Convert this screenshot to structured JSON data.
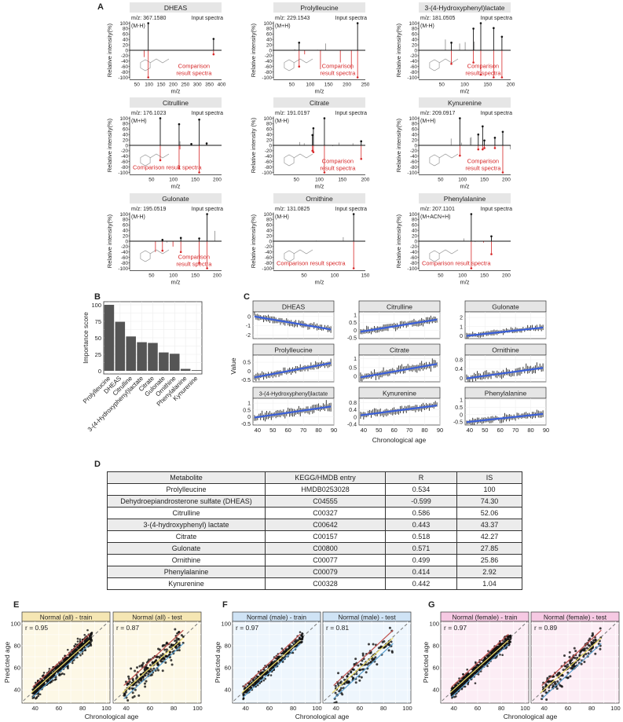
{
  "panel_labels": {
    "A": "A",
    "B": "B",
    "C": "C",
    "D": "D",
    "E": "E",
    "F": "F",
    "G": "G"
  },
  "spectra": [
    {
      "name": "DHEAS",
      "mz": "m/z: 367.1580",
      "input_label": "Input spectra",
      "adduct": "(M-H)",
      "ylabel": "Relative intensity(%)",
      "xlabel": "m/z",
      "xlim": [
        20,
        400
      ],
      "xticks": [
        50,
        100,
        150,
        200,
        250,
        300,
        350,
        400
      ],
      "yticks": [
        100,
        80,
        60,
        40,
        20,
        0,
        -20,
        -40,
        -60,
        -80,
        -100
      ],
      "comparison_label": [
        "Comparison",
        "result spectra"
      ],
      "top": [
        [
          97,
          100,
          true
        ],
        [
          367,
          42,
          true
        ]
      ],
      "bottom": [
        [
          80,
          -25,
          false
        ],
        [
          97,
          -100,
          true
        ],
        [
          367,
          -15,
          true
        ]
      ]
    },
    {
      "name": "Prolylleucine",
      "mz": "m/z: 229.1543",
      "input_label": "Input spectra",
      "adduct": "(M+H)",
      "ylabel": "Relative intensity(%)",
      "xlabel": "m/z",
      "xlim": [
        0,
        250
      ],
      "xticks": [
        50,
        100,
        150,
        200,
        250
      ],
      "yticks": [
        100,
        80,
        60,
        40,
        20,
        0,
        -20,
        -40,
        -60,
        -80,
        -100
      ],
      "comparison_label": [
        "Comparison",
        "result spectra"
      ],
      "top": [
        [
          58,
          4,
          false
        ],
        [
          70,
          28,
          true
        ],
        [
          120,
          2,
          false
        ],
        [
          130,
          2,
          false
        ],
        [
          142,
          25,
          false
        ],
        [
          229,
          100,
          true
        ]
      ],
      "bottom": [
        [
          70,
          -60,
          true
        ],
        [
          85,
          -15,
          false
        ],
        [
          128,
          -70,
          false
        ],
        [
          182,
          -45,
          false
        ],
        [
          212,
          -70,
          false
        ],
        [
          229,
          -100,
          true
        ]
      ]
    },
    {
      "name": "3-(4-Hydroxyphenyl)lactate",
      "mz": "m/z: 181.0505",
      "input_label": "Input spectra",
      "adduct": "(M-H)",
      "ylabel": "Relative intensity(%)",
      "xlabel": "m/z",
      "xlim": [
        0,
        200
      ],
      "xticks": [
        50,
        100,
        150,
        200
      ],
      "yticks": [
        100,
        80,
        60,
        40,
        20,
        0,
        -20,
        -40,
        -60,
        -80,
        -100
      ],
      "comparison_label": [
        "Comparison",
        "result spectra"
      ],
      "top": [
        [
          58,
          40,
          false
        ],
        [
          71,
          28,
          true
        ],
        [
          89,
          25,
          false
        ],
        [
          101,
          30,
          false
        ],
        [
          119,
          80,
          true
        ],
        [
          121,
          32,
          false
        ],
        [
          135,
          100,
          true
        ],
        [
          163,
          82,
          true
        ],
        [
          181,
          50,
          true
        ]
      ],
      "bottom": [
        [
          71,
          -50,
          true
        ],
        [
          119,
          -45,
          true
        ],
        [
          135,
          -90,
          true
        ],
        [
          163,
          -100,
          true
        ],
        [
          181,
          -100,
          true
        ]
      ]
    },
    {
      "name": "Citrulline",
      "mz": "m/z: 176.1023",
      "input_label": "Input spectra",
      "adduct": "(M+H)",
      "ylabel": "Relative intensity(%)",
      "xlabel": "m/z",
      "xlim": [
        0,
        210
      ],
      "xticks": [
        50,
        100,
        150,
        200
      ],
      "yticks": [
        100,
        80,
        60,
        40,
        20,
        0,
        -20,
        -40,
        -60,
        -80,
        -100
      ],
      "comparison_label": [
        "Comparison result spectra"
      ],
      "top": [
        [
          70,
          100,
          true
        ],
        [
          113,
          78,
          true
        ],
        [
          115,
          15,
          false
        ],
        [
          141,
          5,
          true
        ],
        [
          159,
          95,
          true
        ],
        [
          176,
          7,
          true
        ]
      ],
      "bottom": [
        [
          70,
          -55,
          true
        ],
        [
          113,
          -85,
          true
        ],
        [
          115,
          -15,
          false
        ],
        [
          159,
          -100,
          true
        ]
      ]
    },
    {
      "name": "Citrate",
      "mz": "m/z: 191.0197",
      "input_label": "Input spectra",
      "adduct": "(M-H)",
      "ylabel": "Relative intensity (%)",
      "xlabel": "m/z",
      "xlim": [
        0,
        200
      ],
      "xticks": [
        50,
        100,
        150,
        200
      ],
      "yticks": [
        100,
        80,
        60,
        40,
        20,
        0,
        -20,
        -40,
        -60,
        -80,
        -100
      ],
      "comparison_label": [
        "Comparison",
        "result spectra"
      ],
      "top": [
        [
          57,
          12,
          false
        ],
        [
          67,
          8,
          false
        ],
        [
          85,
          38,
          true
        ],
        [
          87,
          63,
          true
        ],
        [
          111,
          100,
          true
        ],
        [
          129,
          -3,
          false
        ],
        [
          143,
          10,
          false
        ],
        [
          173,
          8,
          false
        ],
        [
          191,
          15,
          true
        ]
      ],
      "bottom": [
        [
          85,
          -20,
          true
        ],
        [
          87,
          -25,
          true
        ],
        [
          111,
          -100,
          true
        ],
        [
          191,
          -50,
          true
        ]
      ]
    },
    {
      "name": "Kynurenine",
      "mz": "m/z: 209.0917",
      "input_label": "Input spectra",
      "adduct": "(M+H)",
      "ylabel": "Relative intensity(%)",
      "xlabel": "m/z",
      "xlim": [
        0,
        210
      ],
      "xticks": [
        50,
        100,
        150,
        200
      ],
      "yticks": [
        100,
        80,
        60,
        40,
        20,
        0,
        -20,
        -40,
        -60,
        -80,
        -100
      ],
      "comparison_label": [
        "Comparison",
        "result spectra"
      ],
      "top": [
        [
          74,
          25,
          false
        ],
        [
          94,
          100,
          true
        ],
        [
          98,
          10,
          false
        ],
        [
          118,
          28,
          false
        ],
        [
          120,
          30,
          false
        ],
        [
          136,
          40,
          true
        ],
        [
          146,
          70,
          true
        ],
        [
          150,
          18,
          true
        ],
        [
          174,
          28,
          true
        ],
        [
          192,
          50,
          true
        ],
        [
          209,
          -15,
          false
        ]
      ],
      "bottom": [
        [
          94,
          -38,
          true
        ],
        [
          136,
          -15,
          true
        ],
        [
          146,
          -15,
          true
        ],
        [
          150,
          -10,
          true
        ],
        [
          174,
          -10,
          true
        ],
        [
          192,
          -100,
          true
        ]
      ]
    },
    {
      "name": "Gulonate",
      "mz": "m/z: 195.0519",
      "input_label": "Input spectra",
      "adduct": "(M-H)",
      "ylabel": "Relative intensity(%)",
      "xlabel": "m/z",
      "xlim": [
        0,
        210
      ],
      "xticks": [
        50,
        100,
        150,
        200
      ],
      "yticks": [
        100,
        80,
        60,
        40,
        20,
        0,
        -20,
        -40,
        -60,
        -80,
        -100
      ],
      "comparison_label": [
        "Comparison",
        "result spectra"
      ],
      "top": [
        [
          75,
          5,
          true
        ],
        [
          85,
          -5,
          false
        ],
        [
          117,
          12,
          true
        ],
        [
          159,
          10,
          true
        ],
        [
          177,
          100,
          true
        ],
        [
          195,
          38,
          false
        ]
      ],
      "bottom": [
        [
          59,
          -40,
          false
        ],
        [
          75,
          -35,
          true
        ],
        [
          99,
          -20,
          false
        ],
        [
          117,
          -40,
          true
        ],
        [
          159,
          -80,
          true
        ],
        [
          177,
          -100,
          true
        ]
      ]
    },
    {
      "name": "Ornithine",
      "mz": "m/z: 131.0825",
      "input_label": "Input spectra",
      "adduct": "(M-H)",
      "ylabel": "Relative intensity(%)",
      "xlabel": "m/z",
      "xlim": [
        0,
        150
      ],
      "xticks": [
        50,
        100,
        150
      ],
      "yticks": [
        100,
        80,
        60,
        40,
        20,
        0,
        -20,
        -40,
        -60,
        -80,
        -100
      ],
      "comparison_label": [
        "Comparison result spectra"
      ],
      "top": [
        [
          70,
          2,
          false
        ],
        [
          86,
          1,
          false
        ],
        [
          114,
          15,
          false
        ],
        [
          131,
          100,
          true
        ]
      ],
      "bottom": [
        [
          131,
          -100,
          true
        ]
      ]
    },
    {
      "name": "Phenylalanine",
      "mz": "m/z: 207.1101",
      "input_label": "Input spectra",
      "adduct": "(M+ACN+H)",
      "ylabel": "Relative intensity(%)",
      "xlabel": "m/z",
      "xlim": [
        0,
        210
      ],
      "xticks": [
        50,
        100,
        150,
        200
      ],
      "yticks": [
        100,
        80,
        60,
        40,
        20,
        0,
        -20,
        -40,
        -60,
        -80,
        -100
      ],
      "comparison_label": [
        "Comparison result spectra"
      ],
      "top": [
        [
          103,
          10,
          false
        ],
        [
          120,
          100,
          true
        ],
        [
          129,
          -3,
          false
        ],
        [
          166,
          18,
          true
        ]
      ],
      "bottom": [
        [
          120,
          -100,
          true
        ],
        [
          148,
          -5,
          false
        ],
        [
          166,
          -48,
          true
        ]
      ]
    }
  ],
  "table": {
    "headers": [
      "Metabolite",
      "KEGG/HMDB entry",
      "R",
      "IS"
    ],
    "rows": [
      [
        "Prolylleucine",
        "HMDB0253028",
        "0.534",
        "100"
      ],
      [
        "Dehydroepiandrosterone sulfate (DHEAS)",
        "C04555",
        "-0.599",
        "74.30"
      ],
      [
        "Citrulline",
        "C00327",
        "0.586",
        "52.06"
      ],
      [
        "3-(4-hydroxyphenyl) lactate",
        "C00642",
        "0.443",
        "43.37"
      ],
      [
        "Citrate",
        "C00157",
        "0.518",
        "42.27"
      ],
      [
        "Gulonate",
        "C00800",
        "0.571",
        "27.85"
      ],
      [
        "Ornithine",
        "C00077",
        "0.499",
        "25.86"
      ],
      [
        "Phenylalanine",
        "C00079",
        "0.414",
        "2.92"
      ],
      [
        "Kynurenine",
        "C00328",
        "0.442",
        "1.04"
      ]
    ]
  },
  "chart_data": [
    {
      "type": "bar",
      "ylabel": "Importance score",
      "xlabel": "",
      "ylim": [
        0,
        100
      ],
      "yticks": [
        0,
        25,
        50,
        75,
        100
      ],
      "grid": true,
      "categories": [
        "Prolylleucine",
        "DHEAS",
        "Citrulline",
        "3-(4-Hydroxyphenyl)lactate",
        "Citrate",
        "Gulonate",
        "Ornithine",
        "Phenylalanine",
        "Kynurenine"
      ],
      "values": [
        100,
        74.3,
        52.06,
        43.37,
        42.27,
        27.85,
        25.86,
        2.92,
        1.04
      ],
      "color": "#555555"
    },
    {
      "type": "line",
      "xlabel": "Chronological age",
      "ylabel": "Value",
      "xlim": [
        37,
        90
      ],
      "xticks": [
        40,
        50,
        60,
        70,
        80,
        90
      ],
      "grid": true,
      "fit_color": "#3a5fd9",
      "facets": [
        {
          "name": "DHEAS",
          "ylim": [
            -2.4,
            0.5
          ],
          "yticks": [
            0,
            -1,
            -2
          ],
          "trend": [
            0,
            -1.4
          ],
          "spread": 0.35
        },
        {
          "name": "Citrulline",
          "ylim": [
            -0.55,
            1.2
          ],
          "yticks": [
            1.0,
            0.5,
            0.0,
            -0.5
          ],
          "trend": [
            -0.1,
            0.7
          ],
          "spread": 0.22
        },
        {
          "name": "Gulonate",
          "ylim": [
            -0.3,
            2.6
          ],
          "yticks": [
            2,
            1,
            0
          ],
          "trend": [
            0,
            0.9
          ],
          "spread": 0.3
        },
        {
          "name": "Prolylleucine",
          "ylim": [
            -0.6,
            0.9
          ],
          "yticks": [
            0.5,
            0.0,
            -0.5
          ],
          "trend": [
            -0.35,
            0.45
          ],
          "spread": 0.2
        },
        {
          "name": "Citrate",
          "ylim": [
            -0.3,
            1.2
          ],
          "yticks": [
            1.0,
            0.5,
            0.0
          ],
          "trend": [
            -0.05,
            0.7
          ],
          "spread": 0.22
        },
        {
          "name": "Ornithine",
          "ylim": [
            -0.15,
            1.0
          ],
          "yticks": [
            0.8,
            0.4,
            0.0
          ],
          "trend": [
            0.0,
            0.45
          ],
          "spread": 0.17
        },
        {
          "name": "3-(4-Hydroxyphenyl)lactate",
          "ylim": [
            -0.6,
            1.35
          ],
          "yticks": [
            1.0,
            0.5,
            0.0,
            -0.5
          ],
          "trend": [
            -0.05,
            0.75
          ],
          "spread": 0.3
        },
        {
          "name": "Kynurenine",
          "ylim": [
            -0.45,
            1.05
          ],
          "yticks": [
            0.8,
            0.4,
            0.0,
            -0.4
          ],
          "trend": [
            0.1,
            0.65
          ],
          "spread": 0.2
        },
        {
          "name": "Phenylalanine",
          "ylim": [
            -0.7,
            1.1
          ],
          "yticks": [
            1.0,
            0.5,
            0.0,
            -0.5
          ],
          "trend": [
            -0.5,
            0.05
          ],
          "spread": 0.22
        }
      ]
    },
    {
      "type": "scatter",
      "xlabel": "Chronological age",
      "ylabel": "Predicted age",
      "xlim": [
        29,
        103
      ],
      "ylim": [
        28,
        102
      ],
      "xticks": [
        40,
        60,
        80,
        100
      ],
      "yticks": [
        40,
        60,
        80,
        100
      ],
      "grid": true,
      "line_colors": {
        "identity": "#777777",
        "upper": "#c0504d",
        "fit": "#f2e06b",
        "lower": "#5aa0d0"
      },
      "panels": [
        {
          "group": "E",
          "title": "Normal (all) - train",
          "r": "r = 0.95",
          "strip": "#f5e6b3",
          "bg": "#fdf8e6",
          "n": 650,
          "sd": 3.2
        },
        {
          "group": "E",
          "title": "Normal (all) - test",
          "r": "r = 0.87",
          "strip": "#f5e6b3",
          "bg": "#fdf8e6",
          "n": 220,
          "sd": 5.5
        },
        {
          "group": "F",
          "title": "Normal (male) - train",
          "r": "r = 0.97",
          "strip": "#cfe3f5",
          "bg": "#eef6fd",
          "n": 400,
          "sd": 2.6
        },
        {
          "group": "F",
          "title": "Normal (male) - test",
          "r": "r = 0.81",
          "strip": "#cfe3f5",
          "bg": "#eef6fd",
          "n": 130,
          "sd": 6
        },
        {
          "group": "G",
          "title": "Normal (female) - train",
          "r": "r = 0.97",
          "strip": "#f6c9e3",
          "bg": "#fcedf5",
          "n": 650,
          "sd": 2.6
        },
        {
          "group": "G",
          "title": "Normal (female) - test",
          "r": "r = 0.89",
          "strip": "#f6c9e3",
          "bg": "#fcedf5",
          "n": 180,
          "sd": 4.8
        }
      ]
    }
  ]
}
